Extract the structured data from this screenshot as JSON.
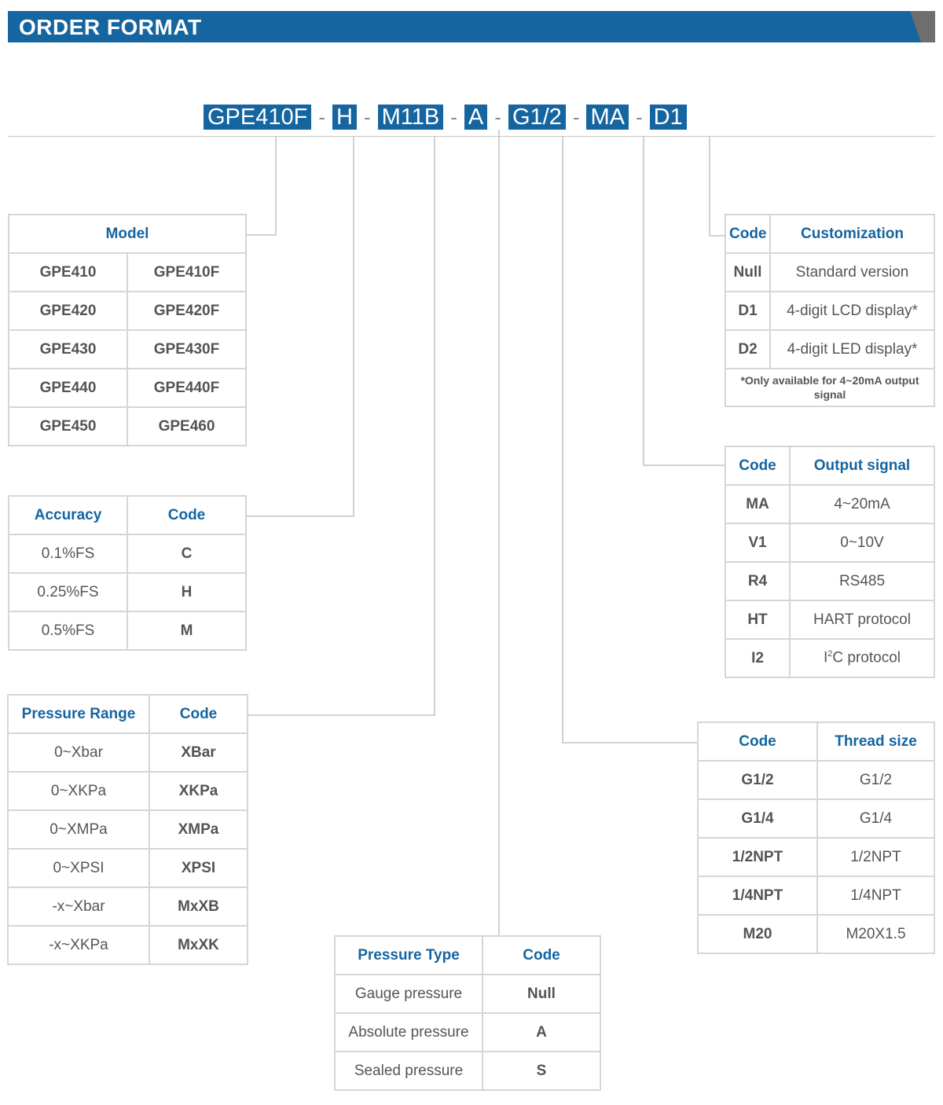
{
  "header": {
    "title": "ORDER FORMAT"
  },
  "order_code": {
    "segments": [
      "GPE410F",
      "H",
      "M11B",
      "A",
      "G1/2",
      "MA",
      "D1"
    ],
    "separator": "-"
  },
  "model": {
    "header": "Model",
    "rows": [
      [
        "GPE410",
        "GPE410F"
      ],
      [
        "GPE420",
        "GPE420F"
      ],
      [
        "GPE430",
        "GPE430F"
      ],
      [
        "GPE440",
        "GPE440F"
      ],
      [
        "GPE450",
        "GPE460"
      ]
    ]
  },
  "accuracy": {
    "headers": [
      "Accuracy",
      "Code"
    ],
    "rows": [
      [
        "0.1%FS",
        "C"
      ],
      [
        "0.25%FS",
        "H"
      ],
      [
        "0.5%FS",
        "M"
      ]
    ]
  },
  "pressure_range": {
    "headers": [
      "Pressure Range",
      "Code"
    ],
    "rows": [
      [
        "0~Xbar",
        "XBar"
      ],
      [
        "0~XKPa",
        "XKPa"
      ],
      [
        "0~XMPa",
        "XMPa"
      ],
      [
        "0~XPSI",
        "XPSI"
      ],
      [
        "-x~Xbar",
        "MxXB"
      ],
      [
        "-x~XKPa",
        "MxXK"
      ]
    ]
  },
  "pressure_type": {
    "headers": [
      "Pressure Type",
      "Code"
    ],
    "rows": [
      [
        "Gauge pressure",
        "Null"
      ],
      [
        "Absolute pressure",
        "A"
      ],
      [
        "Sealed pressure",
        "S"
      ]
    ]
  },
  "customization": {
    "headers": [
      "Code",
      "Customization"
    ],
    "rows": [
      [
        "Null",
        "Standard version"
      ],
      [
        "D1",
        "4-digit LCD display*"
      ],
      [
        "D2",
        "4-digit LED display*"
      ]
    ],
    "note": "*Only available for 4~20mA output signal"
  },
  "output_signal": {
    "headers": [
      "Code",
      "Output signal"
    ],
    "rows": [
      [
        "MA",
        "4~20mA"
      ],
      [
        "V1",
        "0~10V"
      ],
      [
        "R4",
        "RS485"
      ],
      [
        "HT",
        "HART protocol"
      ]
    ],
    "i2c_row": {
      "code": "I2",
      "prefix": "I",
      "sup": "2",
      "suffix": "C protocol"
    }
  },
  "thread_size": {
    "headers": [
      "Code",
      "Thread size"
    ],
    "rows": [
      [
        "G1/2",
        "G1/2"
      ],
      [
        "G1/4",
        "G1/4"
      ],
      [
        "1/2NPT",
        "1/2NPT"
      ],
      [
        "1/4NPT",
        "1/4NPT"
      ],
      [
        "M20",
        "M20X1.5"
      ]
    ]
  },
  "colors": {
    "accent": "#1565a0",
    "border": "#d6d6d6",
    "text": "#555555",
    "corner": "#6e6e6e"
  }
}
